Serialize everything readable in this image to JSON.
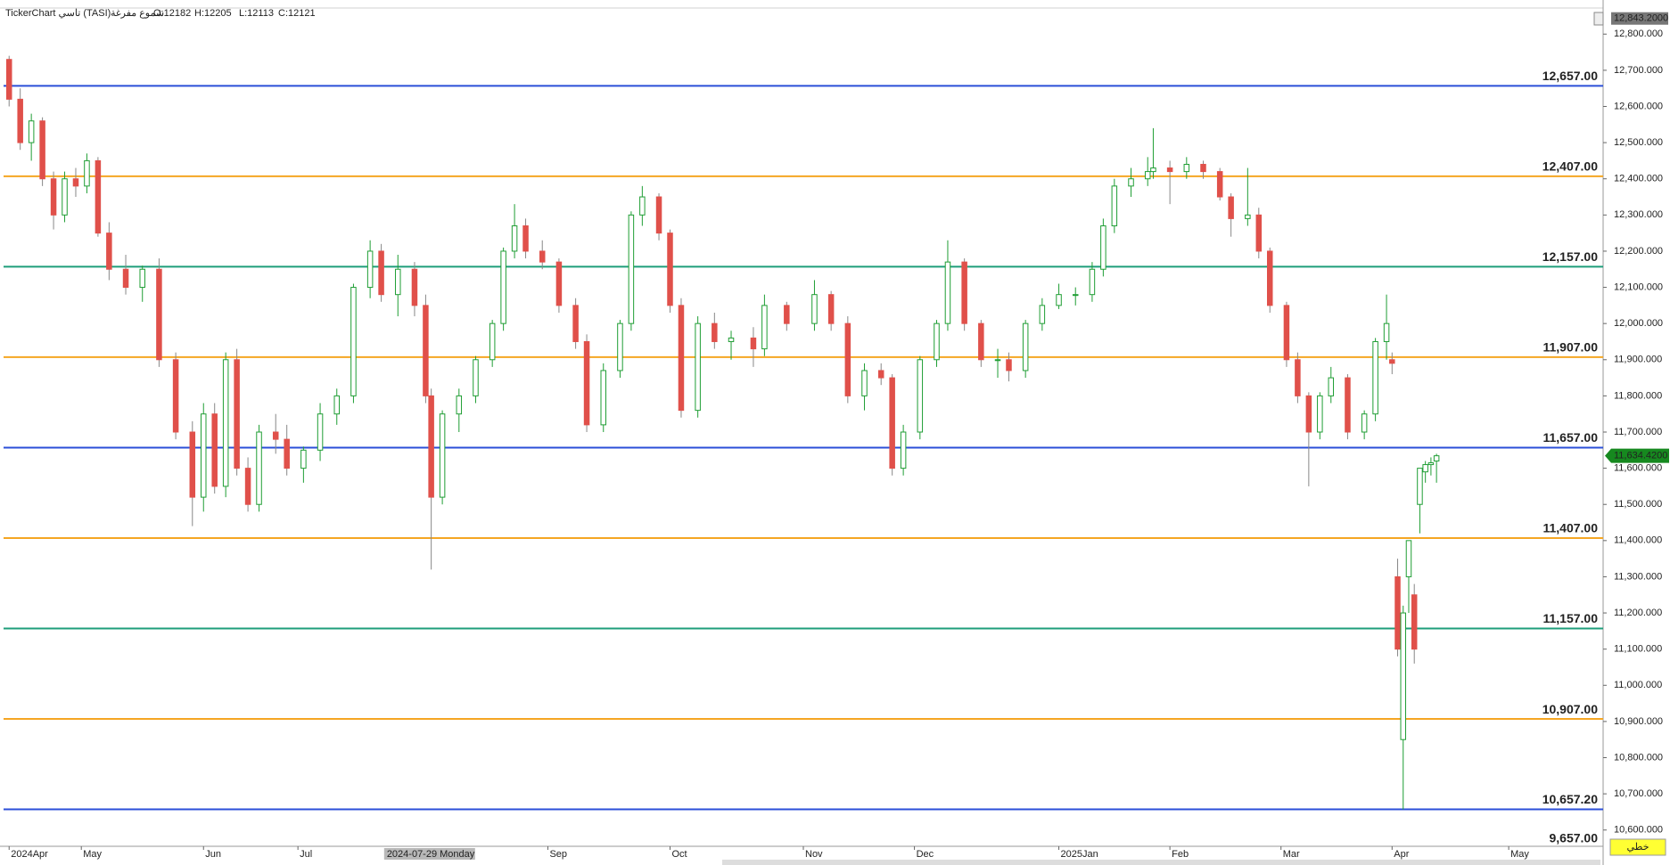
{
  "header": {
    "symbol": "TickerChart تاسي (TASI)",
    "style": "شموع مفرغة",
    "ohlc": [
      "O:12182",
      "H:12205",
      "L:12113",
      "C:12121"
    ]
  },
  "chart_data": {
    "type": "candlestick",
    "up_color": "#1f9e34",
    "up_fill": "#ffffff",
    "down_color": "#e0504a",
    "x": [
      0,
      2,
      4,
      6,
      8,
      10,
      12,
      14,
      16,
      18,
      21,
      24,
      27,
      30,
      33,
      35,
      37,
      39,
      41,
      43,
      45,
      48,
      50,
      53,
      56,
      59,
      62,
      65,
      67,
      70,
      73,
      75,
      76,
      78,
      81,
      84,
      87,
      89,
      91,
      93,
      96,
      99,
      102,
      104,
      107,
      110,
      112,
      114,
      117,
      119,
      121,
      124,
      127,
      130,
      134,
      136,
      140,
      145,
      148,
      151,
      154,
      157,
      159,
      161,
      164,
      167,
      169,
      172,
      175,
      178,
      180,
      183,
      186,
      189,
      192,
      195,
      197,
      199,
      202,
      205,
      206,
      209,
      212,
      215,
      218,
      220,
      223,
      225,
      227,
      230,
      232,
      234,
      236,
      238,
      241,
      244,
      246,
      248,
      249,
      250,
      251,
      252,
      253,
      254,
      255,
      256,
      257
    ],
    "open": [
      12730,
      12620,
      12500,
      12560,
      12400,
      12300,
      12400,
      12380,
      12450,
      12250,
      12150,
      12100,
      12150,
      11900,
      11700,
      11520,
      11750,
      11550,
      11900,
      11600,
      11500,
      11700,
      11680,
      11600,
      11650,
      11750,
      11800,
      12100,
      12200,
      12080,
      12150,
      12050,
      11800,
      11520,
      11750,
      11800,
      11900,
      12000,
      12200,
      12270,
      12200,
      12170,
      12050,
      11950,
      11720,
      11870,
      12000,
      12300,
      12350,
      12250,
      12050,
      11760,
      12000,
      11950,
      11960,
      11930,
      12050,
      12000,
      12080,
      12000,
      11800,
      11870,
      11850,
      11600,
      11700,
      11900,
      12000,
      12170,
      12000,
      11900,
      11900,
      11870,
      12000,
      12050,
      12080,
      12080,
      12150,
      12270,
      12380,
      12400,
      12420,
      12430,
      12420,
      12440,
      12420,
      12350,
      12290,
      12300,
      12200,
      12050,
      11900,
      11800,
      11700,
      11800,
      11850,
      11700,
      11750,
      11950,
      11900,
      11300,
      10850,
      11300,
      11250,
      11500,
      11590,
      11610,
      11620
    ],
    "high": [
      12740,
      12650,
      12580,
      12570,
      12420,
      12420,
      12430,
      12470,
      12460,
      12280,
      12190,
      12160,
      12180,
      11920,
      11730,
      11780,
      11780,
      11920,
      11930,
      11630,
      11720,
      11750,
      11720,
      11660,
      11780,
      11820,
      12110,
      12230,
      12220,
      12190,
      12170,
      12080,
      11820,
      11760,
      11820,
      11910,
      12010,
      12210,
      12330,
      12290,
      12230,
      12180,
      12070,
      11970,
      11890,
      12010,
      12310,
      12380,
      12360,
      12260,
      12070,
      12020,
      12030,
      11980,
      11990,
      12080,
      12060,
      12120,
      12090,
      12020,
      11890,
      11890,
      11860,
      11720,
      11910,
      12010,
      12230,
      12180,
      12010,
      11930,
      11920,
      12010,
      12070,
      12110,
      12100,
      12170,
      12290,
      12400,
      12430,
      12460,
      12540,
      12450,
      12460,
      12450,
      12430,
      12360,
      12430,
      12320,
      12210,
      12060,
      11920,
      11810,
      11810,
      11880,
      11860,
      11760,
      11960,
      12080,
      11920,
      11350,
      11220,
      11400,
      11280,
      11600,
      11620,
      11630,
      11640
    ],
    "low": [
      12600,
      12480,
      12450,
      12380,
      12260,
      12280,
      12350,
      12360,
      12240,
      12120,
      12080,
      12060,
      11880,
      11680,
      11440,
      11480,
      11530,
      11520,
      11580,
      11480,
      11480,
      11640,
      11580,
      11560,
      11620,
      11720,
      11780,
      12070,
      12060,
      12020,
      12020,
      11780,
      11320,
      11500,
      11700,
      11780,
      11880,
      11980,
      12180,
      12180,
      12150,
      12030,
      11930,
      11700,
      11700,
      11850,
      11980,
      12270,
      12230,
      12030,
      11740,
      11740,
      11930,
      11900,
      11880,
      11910,
      11980,
      11980,
      11980,
      11780,
      11760,
      11830,
      11580,
      11580,
      11680,
      11880,
      11980,
      11980,
      11880,
      11850,
      11840,
      11850,
      11980,
      12040,
      12050,
      12060,
      12130,
      12250,
      12350,
      12380,
      12400,
      12330,
      12400,
      12400,
      12340,
      12240,
      12270,
      12180,
      12030,
      11880,
      11780,
      11550,
      11680,
      11780,
      11680,
      11680,
      11730,
      11900,
      11860,
      11080,
      10657,
      11200,
      11060,
      11420,
      11560,
      11580,
      11560
    ],
    "close": [
      12620,
      12500,
      12560,
      12400,
      12300,
      12400,
      12380,
      12450,
      12250,
      12150,
      12100,
      12150,
      11900,
      11700,
      11520,
      11750,
      11550,
      11900,
      11600,
      11500,
      11700,
      11680,
      11600,
      11650,
      11750,
      11800,
      12100,
      12200,
      12080,
      12150,
      12050,
      11800,
      11520,
      11750,
      11800,
      11900,
      12000,
      12200,
      12270,
      12200,
      12170,
      12050,
      11950,
      11720,
      11870,
      12000,
      12300,
      12350,
      12250,
      12050,
      11760,
      12000,
      11950,
      11960,
      11930,
      12050,
      12000,
      12080,
      12000,
      11800,
      11870,
      11850,
      11600,
      11700,
      11900,
      12000,
      12170,
      12000,
      11900,
      11900,
      11870,
      12000,
      12050,
      12080,
      12080,
      12150,
      12270,
      12380,
      12400,
      12420,
      12430,
      12420,
      12440,
      12420,
      12350,
      12290,
      12300,
      12200,
      12050,
      11900,
      11800,
      11700,
      11800,
      11850,
      11700,
      11750,
      11950,
      12000,
      11890,
      11100,
      11200,
      11400,
      11100,
      11600,
      11610,
      11615,
      11634.42
    ],
    "xlim": [
      -1,
      287
    ],
    "ylim": [
      10555,
      12845
    ],
    "xticks": [
      {
        "value": 0,
        "label": "2024Apr"
      },
      {
        "value": 13,
        "label": "May"
      },
      {
        "value": 35,
        "label": "Jun"
      },
      {
        "value": 52,
        "label": "Jul"
      },
      {
        "value": 97,
        "label": "Sep"
      },
      {
        "value": 119,
        "label": "Oct"
      },
      {
        "value": 143,
        "label": "Nov"
      },
      {
        "value": 163,
        "label": "Dec"
      },
      {
        "value": 189,
        "label": "2025Jan"
      },
      {
        "value": 209,
        "label": "Feb"
      },
      {
        "value": 229,
        "label": "Mar"
      },
      {
        "value": 249,
        "label": "Apr"
      },
      {
        "value": 270,
        "label": "May"
      }
    ],
    "yticks": [
      {
        "value": 10600,
        "label": "10,600.000"
      },
      {
        "value": 10700,
        "label": "10,700.000"
      },
      {
        "value": 10800,
        "label": "10,800.000"
      },
      {
        "value": 10900,
        "label": "10,900.000"
      },
      {
        "value": 11000,
        "label": "11,000.000"
      },
      {
        "value": 11100,
        "label": "11,100.000"
      },
      {
        "value": 11200,
        "label": "11,200.000"
      },
      {
        "value": 11300,
        "label": "11,300.000"
      },
      {
        "value": 11400,
        "label": "11,400.000"
      },
      {
        "value": 11500,
        "label": "11,500.000"
      },
      {
        "value": 11600,
        "label": "11,600.000"
      },
      {
        "value": 11700,
        "label": "11,700.000"
      },
      {
        "value": 11800,
        "label": "11,800.000"
      },
      {
        "value": 11900,
        "label": "11,900.000"
      },
      {
        "value": 12000,
        "label": "12,000.000"
      },
      {
        "value": 12100,
        "label": "12,100.000"
      },
      {
        "value": 12200,
        "label": "12,200.000"
      },
      {
        "value": 12300,
        "label": "12,300.000"
      },
      {
        "value": 12400,
        "label": "12,400.000"
      },
      {
        "value": 12500,
        "label": "12,500.000"
      },
      {
        "value": 12600,
        "label": "12,600.000"
      },
      {
        "value": 12700,
        "label": "12,700.000"
      },
      {
        "value": 12800,
        "label": "12,800.000"
      }
    ],
    "levels": [
      {
        "value": 12657,
        "label": "12,657.00",
        "color": "#2b4fd8"
      },
      {
        "value": 12407,
        "label": "12,407.00",
        "color": "#f5a623"
      },
      {
        "value": 12157,
        "label": "12,157.00",
        "color": "#1e9e7a"
      },
      {
        "value": 11907,
        "label": "11,907.00",
        "color": "#f5a623"
      },
      {
        "value": 11657,
        "label": "11,657.00",
        "color": "#2b4fd8"
      },
      {
        "value": 11407,
        "label": "11,407.00",
        "color": "#f5a623"
      },
      {
        "value": 11157,
        "label": "11,157.00",
        "color": "#1e9e7a"
      },
      {
        "value": 10907,
        "label": "10,907.00",
        "color": "#f5a623"
      },
      {
        "value": 10657.2,
        "label": "10,657.20",
        "color": "#2b4fd8"
      }
    ],
    "level_label_color": "#2f6fe0",
    "bottom_label": "9,657.00",
    "crosshair_date": {
      "value": 68,
      "label": "2024-07-29 Monday"
    },
    "top_price": {
      "value": 12843.2,
      "label": "12,843.2000"
    },
    "last_price": {
      "value": 11634.42,
      "label": "11,634.4200"
    },
    "style_button": "خطي"
  }
}
